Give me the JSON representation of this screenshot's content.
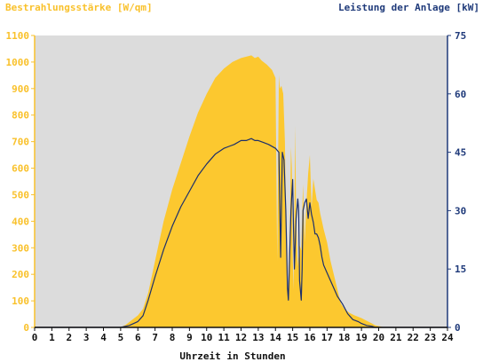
{
  "chart_data": {
    "type": "area",
    "left_axis_title": "Bestrahlungsstärke [W/qm]",
    "right_axis_title": "Leistung der Anlage [kW]",
    "xlabel": "Uhrzeit in Stunden",
    "x_ticks": [
      "0",
      "1",
      "2",
      "3",
      "4",
      "5",
      "6",
      "7",
      "8",
      "9",
      "10",
      "11",
      "12",
      "13",
      "14",
      "15",
      "16",
      "17",
      "18",
      "19",
      "20",
      "21",
      "22",
      "23",
      "24"
    ],
    "y_left_ticks": [
      "0",
      "100",
      "200",
      "300",
      "400",
      "500",
      "600",
      "700",
      "800",
      "900",
      "1000",
      "1100"
    ],
    "y_right_ticks": [
      "0",
      "15",
      "30",
      "45",
      "60",
      "75"
    ],
    "xlim": [
      0,
      24
    ],
    "ylim_left": [
      0,
      1100
    ],
    "ylim_right": [
      0,
      75
    ],
    "plot_background": "#dcdcdc",
    "colors": {
      "irradiance": "#fcc82f",
      "power": "#1c2f6b",
      "left_axis": "#f9c12b",
      "right_axis": "#1f3a7a"
    },
    "series": [
      {
        "axis": "left",
        "style": "filled-area",
        "x": [
          0,
          5.0,
          5.3,
          5.6,
          6.0,
          6.3,
          6.6,
          7.0,
          7.5,
          8.0,
          8.5,
          9.0,
          9.5,
          10.0,
          10.5,
          11.0,
          11.5,
          12.0,
          12.3,
          12.6,
          12.8,
          13.0,
          13.2,
          13.5,
          13.8,
          14.0,
          14.1,
          14.2,
          14.25,
          14.35,
          14.45,
          14.55,
          14.65,
          14.75,
          14.85,
          14.9,
          14.95,
          15.0,
          15.05,
          15.1,
          15.15,
          15.2,
          15.3,
          15.4,
          15.5,
          15.6,
          15.7,
          15.8,
          15.9,
          16.0,
          16.1,
          16.2,
          16.3,
          16.4,
          16.5,
          16.6,
          16.7,
          16.8,
          17.0,
          17.2,
          17.5,
          17.8,
          18.0,
          18.3,
          18.6,
          19.0,
          19.3,
          19.6,
          19.8,
          20.0,
          20.2,
          20.5,
          24.0
        ],
        "values": [
          0,
          0,
          10,
          25,
          45,
          70,
          130,
          250,
          400,
          520,
          620,
          720,
          810,
          880,
          940,
          975,
          1000,
          1015,
          1020,
          1025,
          1015,
          1020,
          1005,
          990,
          970,
          940,
          250,
          950,
          900,
          910,
          880,
          700,
          250,
          130,
          420,
          680,
          600,
          280,
          140,
          420,
          760,
          420,
          230,
          310,
          290,
          540,
          320,
          470,
          580,
          650,
          450,
          560,
          520,
          480,
          470,
          430,
          400,
          370,
          320,
          250,
          170,
          90,
          70,
          55,
          45,
          35,
          25,
          15,
          8,
          5,
          2,
          0,
          0
        ]
      },
      {
        "axis": "right",
        "style": "line",
        "x": [
          0,
          5.0,
          5.5,
          6.0,
          6.3,
          6.6,
          7.0,
          7.5,
          8.0,
          8.5,
          9.0,
          9.5,
          10.0,
          10.5,
          11.0,
          11.3,
          11.6,
          12.0,
          12.3,
          12.6,
          12.8,
          13.0,
          13.3,
          13.6,
          14.0,
          14.2,
          14.3,
          14.4,
          14.5,
          14.6,
          14.7,
          14.75,
          14.8,
          14.9,
          15.0,
          15.05,
          15.1,
          15.2,
          15.3,
          15.35,
          15.4,
          15.5,
          15.55,
          15.6,
          15.7,
          15.8,
          15.9,
          16.0,
          16.1,
          16.2,
          16.3,
          16.4,
          16.5,
          16.6,
          16.7,
          16.8,
          17.0,
          17.3,
          17.6,
          17.9,
          18.2,
          18.5,
          18.8,
          19.0,
          19.3,
          19.6,
          19.8,
          20.0,
          20.2,
          20.5,
          24.0
        ],
        "values": [
          0,
          0,
          0.5,
          1.5,
          3,
          7,
          13,
          20,
          26,
          31,
          35,
          39,
          42,
          44.5,
          46,
          46.5,
          47,
          48,
          48,
          48.5,
          48,
          48,
          47.5,
          47,
          46,
          45,
          18,
          45,
          43,
          30,
          10,
          7,
          15,
          30,
          38,
          25,
          15,
          28,
          33,
          30,
          12,
          7,
          15,
          30,
          32,
          33,
          28,
          32,
          29,
          27,
          24,
          24,
          23,
          21,
          18,
          16,
          14,
          11,
          8,
          6,
          3.5,
          2,
          1.5,
          1,
          0.5,
          0.3,
          0,
          0,
          0,
          0,
          0
        ]
      }
    ]
  }
}
